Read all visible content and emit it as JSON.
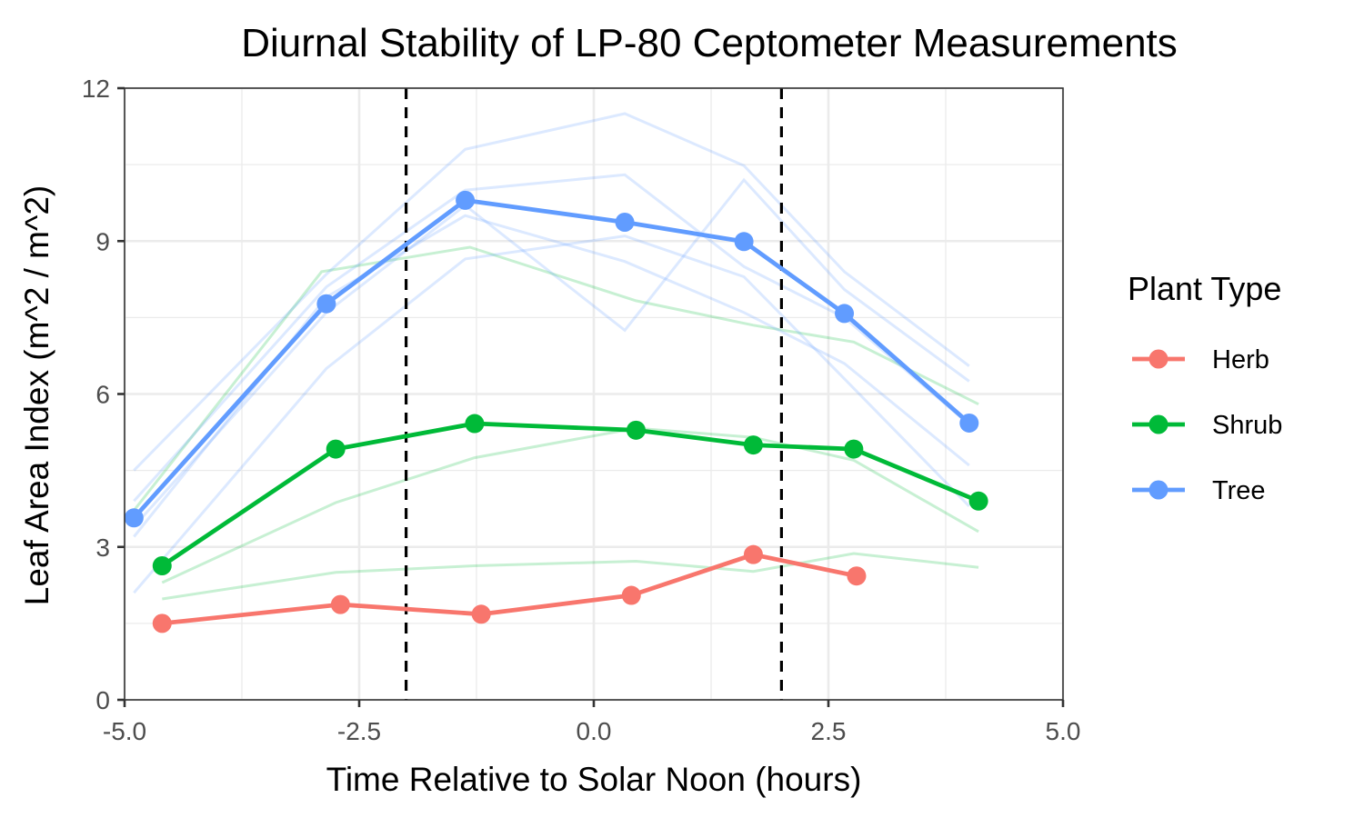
{
  "chart_data": {
    "type": "line",
    "title": "Diurnal Stability of LP-80 Ceptometer Measurements",
    "xlabel": "Time Relative to Solar Noon (hours)",
    "ylabel": "Leaf Area Index (m^2 / m^2)",
    "xlim": [
      -5,
      5
    ],
    "ylim": [
      0,
      12
    ],
    "x_ticks": [
      "-5.0",
      "-2.5",
      "0.0",
      "2.5",
      "5.0"
    ],
    "y_ticks": [
      "0",
      "3",
      "6",
      "9",
      "12"
    ],
    "x_tick_values": [
      -5,
      -2.5,
      0,
      2.5,
      5
    ],
    "y_tick_values": [
      0,
      3,
      6,
      9,
      12
    ],
    "x_minor_values": [
      -3.75,
      -1.25,
      1.25,
      3.75
    ],
    "y_minor_values": [
      1.5,
      4.5,
      7.5,
      10.5
    ],
    "grid": true,
    "reference_lines_x": [
      -2,
      2
    ],
    "legend": {
      "title": "Plant Type",
      "position": "right"
    },
    "series": [
      {
        "name": "Herb",
        "color": "#F8766D",
        "x": [
          -4.6,
          -2.7,
          -1.2,
          0.4,
          1.7,
          2.8
        ],
        "y": [
          1.5,
          1.87,
          1.68,
          2.05,
          2.85,
          2.43
        ]
      },
      {
        "name": "Shrub",
        "color": "#00BA38",
        "x": [
          -4.6,
          -2.75,
          -1.27,
          0.45,
          1.7,
          2.77,
          4.1
        ],
        "y": [
          2.63,
          4.92,
          5.42,
          5.29,
          5.0,
          4.92,
          3.9
        ]
      },
      {
        "name": "Tree",
        "color": "#619CFF",
        "x": [
          -4.9,
          -2.85,
          -1.37,
          0.33,
          1.6,
          2.67,
          4.0
        ],
        "y": [
          3.57,
          7.77,
          9.8,
          9.37,
          8.99,
          7.58,
          5.43
        ]
      }
    ],
    "replicates": [
      {
        "group": "Shrub",
        "color": "#00BA38",
        "x": [
          -4.6,
          -2.75,
          -1.27,
          0.45,
          1.7,
          2.77,
          4.1
        ],
        "y": [
          1.98,
          2.5,
          2.63,
          2.72,
          2.52,
          2.87,
          2.6
        ]
      },
      {
        "group": "Shrub",
        "color": "#00BA38",
        "x": [
          -4.6,
          -2.75,
          -1.27,
          0.45,
          1.7,
          2.77,
          4.1
        ],
        "y": [
          2.3,
          3.87,
          4.75,
          5.33,
          5.15,
          4.7,
          3.3
        ]
      },
      {
        "group": "Shrub",
        "color": "#00BA38",
        "x": [
          -4.95,
          -2.9,
          -1.32,
          0.45,
          1.7,
          2.77,
          4.1
        ],
        "y": [
          3.6,
          8.4,
          8.88,
          7.83,
          7.35,
          7.02,
          5.8
        ]
      },
      {
        "group": "Tree",
        "color": "#619CFF",
        "x": [
          -4.9,
          -2.85,
          -1.37,
          0.33,
          1.6,
          2.67,
          4.0
        ],
        "y": [
          4.5,
          8.35,
          10.8,
          11.5,
          10.48,
          8.4,
          6.55
        ]
      },
      {
        "group": "Tree",
        "color": "#619CFF",
        "x": [
          -4.9,
          -2.85,
          -1.37,
          0.33,
          1.6,
          2.67,
          4.0
        ],
        "y": [
          3.9,
          8.1,
          10.0,
          10.3,
          8.5,
          7.5,
          5.4
        ]
      },
      {
        "group": "Tree",
        "color": "#619CFF",
        "x": [
          -4.9,
          -2.85,
          -1.37,
          0.33,
          1.6,
          2.67,
          4.0
        ],
        "y": [
          2.1,
          6.5,
          8.65,
          9.1,
          8.3,
          6.3,
          3.8
        ]
      },
      {
        "group": "Tree",
        "color": "#619CFF",
        "x": [
          -4.9,
          -2.85,
          -1.37,
          0.33,
          1.6,
          2.67,
          4.0
        ],
        "y": [
          3.2,
          7.9,
          9.5,
          8.6,
          7.6,
          6.6,
          4.6
        ]
      },
      {
        "group": "Tree",
        "color": "#619CFF",
        "x": [
          -4.9,
          -2.85,
          -1.37,
          0.33,
          1.6,
          2.67,
          4.0
        ],
        "y": [
          3.4,
          7.6,
          9.7,
          7.25,
          10.2,
          8.05,
          6.25
        ]
      }
    ]
  }
}
